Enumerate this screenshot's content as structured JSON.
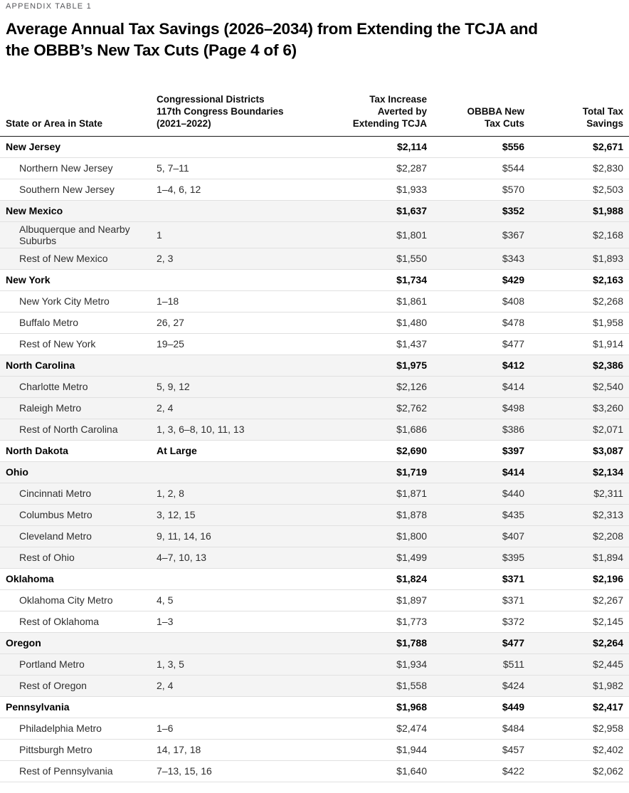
{
  "eyebrow": "APPENDIX TABLE 1",
  "title": "Average Annual Tax Savings (2026–2034) from Extending the TCJA and\nthe OBBB’s New Tax Cuts (Page 4 of 6)",
  "colors": {
    "shaded_row_bg": "#f4f4f4",
    "row_border": "#e0e0e0",
    "header_rule": "#1a1a1a",
    "eyebrow_text": "#55565a",
    "body_text": "#2e2e2e"
  },
  "chart_data": {
    "type": "table",
    "title": "Average Annual Tax Savings (2026–2034) from Extending the TCJA and the OBBB’s New Tax Cuts (Page 4 of 6)",
    "columns": [
      {
        "label": "State or Area in State",
        "align": "left"
      },
      {
        "label": "Congressional Districts\n117th Congress Boundaries\n(2021–2022)",
        "align": "left"
      },
      {
        "label": "Tax Increase\nAverted by\nExtending TCJA",
        "align": "right"
      },
      {
        "label": "OBBBA New\nTax Cuts",
        "align": "right"
      },
      {
        "label": "Total Tax\nSavings",
        "align": "right"
      }
    ],
    "rows": [
      {
        "type": "state",
        "shaded": false,
        "area": "New Jersey",
        "districts": "",
        "tcja": "$2,114",
        "obbba": "$556",
        "total": "$2,671"
      },
      {
        "type": "sub",
        "shaded": false,
        "area": "Northern New Jersey",
        "districts": "5, 7–11",
        "tcja": "$2,287",
        "obbba": "$544",
        "total": "$2,830"
      },
      {
        "type": "sub",
        "shaded": false,
        "area": "Southern New Jersey",
        "districts": "1–4, 6, 12",
        "tcja": "$1,933",
        "obbba": "$570",
        "total": "$2,503"
      },
      {
        "type": "state",
        "shaded": true,
        "area": "New Mexico",
        "districts": "",
        "tcja": "$1,637",
        "obbba": "$352",
        "total": "$1,988"
      },
      {
        "type": "sub",
        "shaded": true,
        "area": "Albuquerque and Nearby Suburbs",
        "districts": "1",
        "tcja": "$1,801",
        "obbba": "$367",
        "total": "$2,168"
      },
      {
        "type": "sub",
        "shaded": true,
        "area": "Rest of New Mexico",
        "districts": "2, 3",
        "tcja": "$1,550",
        "obbba": "$343",
        "total": "$1,893"
      },
      {
        "type": "state",
        "shaded": false,
        "area": "New York",
        "districts": "",
        "tcja": "$1,734",
        "obbba": "$429",
        "total": "$2,163"
      },
      {
        "type": "sub",
        "shaded": false,
        "area": "New York City Metro",
        "districts": "1–18",
        "tcja": "$1,861",
        "obbba": "$408",
        "total": "$2,268"
      },
      {
        "type": "sub",
        "shaded": false,
        "area": "Buffalo Metro",
        "districts": "26, 27",
        "tcja": "$1,480",
        "obbba": "$478",
        "total": "$1,958"
      },
      {
        "type": "sub",
        "shaded": false,
        "area": "Rest of New York",
        "districts": "19–25",
        "tcja": "$1,437",
        "obbba": "$477",
        "total": "$1,914"
      },
      {
        "type": "state",
        "shaded": true,
        "area": "North Carolina",
        "districts": "",
        "tcja": "$1,975",
        "obbba": "$412",
        "total": "$2,386"
      },
      {
        "type": "sub",
        "shaded": true,
        "area": "Charlotte Metro",
        "districts": "5, 9, 12",
        "tcja": "$2,126",
        "obbba": "$414",
        "total": "$2,540"
      },
      {
        "type": "sub",
        "shaded": true,
        "area": "Raleigh Metro",
        "districts": "2, 4",
        "tcja": "$2,762",
        "obbba": "$498",
        "total": "$3,260"
      },
      {
        "type": "sub",
        "shaded": true,
        "area": "Rest of North Carolina",
        "districts": "1, 3, 6–8, 10, 11, 13",
        "tcja": "$1,686",
        "obbba": "$386",
        "total": "$2,071"
      },
      {
        "type": "state",
        "shaded": false,
        "area": "North Dakota",
        "districts": "At Large",
        "tcja": "$2,690",
        "obbba": "$397",
        "total": "$3,087"
      },
      {
        "type": "state",
        "shaded": true,
        "area": "Ohio",
        "districts": "",
        "tcja": "$1,719",
        "obbba": "$414",
        "total": "$2,134"
      },
      {
        "type": "sub",
        "shaded": true,
        "area": "Cincinnati Metro",
        "districts": "1, 2, 8",
        "tcja": "$1,871",
        "obbba": "$440",
        "total": "$2,311"
      },
      {
        "type": "sub",
        "shaded": true,
        "area": "Columbus Metro",
        "districts": "3, 12, 15",
        "tcja": "$1,878",
        "obbba": "$435",
        "total": "$2,313"
      },
      {
        "type": "sub",
        "shaded": true,
        "area": "Cleveland Metro",
        "districts": "9, 11, 14, 16",
        "tcja": "$1,800",
        "obbba": "$407",
        "total": "$2,208"
      },
      {
        "type": "sub",
        "shaded": true,
        "area": "Rest of Ohio",
        "districts": "4–7, 10, 13",
        "tcja": "$1,499",
        "obbba": "$395",
        "total": "$1,894"
      },
      {
        "type": "state",
        "shaded": false,
        "area": "Oklahoma",
        "districts": "",
        "tcja": "$1,824",
        "obbba": "$371",
        "total": "$2,196"
      },
      {
        "type": "sub",
        "shaded": false,
        "area": "Oklahoma City Metro",
        "districts": "4, 5",
        "tcja": "$1,897",
        "obbba": "$371",
        "total": "$2,267"
      },
      {
        "type": "sub",
        "shaded": false,
        "area": "Rest of Oklahoma",
        "districts": "1–3",
        "tcja": "$1,773",
        "obbba": "$372",
        "total": "$2,145"
      },
      {
        "type": "state",
        "shaded": true,
        "area": "Oregon",
        "districts": "",
        "tcja": "$1,788",
        "obbba": "$477",
        "total": "$2,264"
      },
      {
        "type": "sub",
        "shaded": true,
        "area": "Portland Metro",
        "districts": "1, 3, 5",
        "tcja": "$1,934",
        "obbba": "$511",
        "total": "$2,445"
      },
      {
        "type": "sub",
        "shaded": true,
        "area": "Rest of Oregon",
        "districts": "2, 4",
        "tcja": "$1,558",
        "obbba": "$424",
        "total": "$1,982"
      },
      {
        "type": "state",
        "shaded": false,
        "area": "Pennsylvania",
        "districts": "",
        "tcja": "$1,968",
        "obbba": "$449",
        "total": "$2,417"
      },
      {
        "type": "sub",
        "shaded": false,
        "area": "Philadelphia Metro",
        "districts": "1–6",
        "tcja": "$2,474",
        "obbba": "$484",
        "total": "$2,958"
      },
      {
        "type": "sub",
        "shaded": false,
        "area": "Pittsburgh Metro",
        "districts": "14, 17, 18",
        "tcja": "$1,944",
        "obbba": "$457",
        "total": "$2,402"
      },
      {
        "type": "sub",
        "shaded": false,
        "area": "Rest of Pennsylvania",
        "districts": "7–13, 15, 16",
        "tcja": "$1,640",
        "obbba": "$422",
        "total": "$2,062"
      }
    ]
  }
}
